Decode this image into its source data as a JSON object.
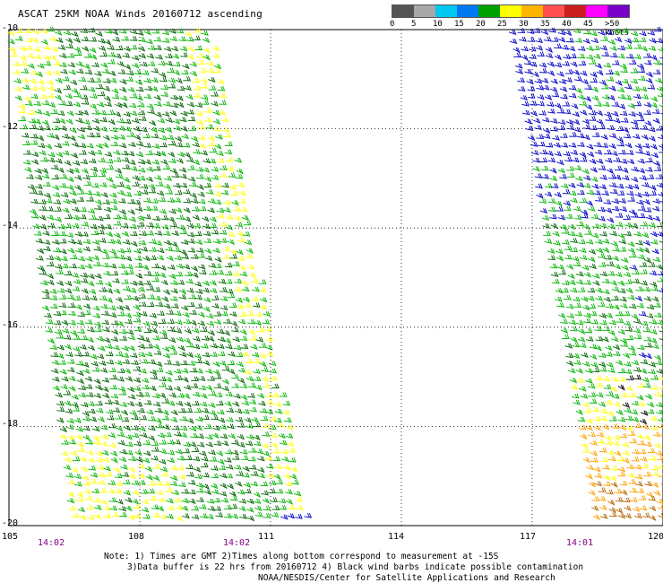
{
  "title": "ASCAT 25KM NOAA Winds 20160712 ascending",
  "legend": {
    "labels": [
      "0",
      "5",
      "10",
      "15",
      "20",
      "25",
      "30",
      "35",
      "40",
      "45",
      ">50 knots"
    ],
    "colors": [
      "#555555",
      "#a8a8a8",
      "#00c8f0",
      "#0078f0",
      "#00a000",
      "#ffff00",
      "#ffb400",
      "#ff5050",
      "#c81e1e",
      "#ff00ff",
      "#7800c8"
    ]
  },
  "map": {
    "lon_ticks": [
      "105",
      "108",
      "111",
      "114",
      "117",
      "120"
    ],
    "lat_ticks": [
      "-10",
      "-12",
      "-14",
      "-16",
      "-18",
      "-20"
    ],
    "lon_range": [
      105,
      120
    ],
    "lat_range": [
      -20,
      -10
    ],
    "grid": "dotted",
    "swath_times": [
      "14:02",
      "14:02",
      "14:01"
    ],
    "barb_colors": {
      "dark_green": "#006400",
      "green": "#00b400",
      "yellow": "#ffff00",
      "blue": "#0000c8",
      "orange": "#ffa000",
      "brown": "#b46400",
      "black": "#000000"
    }
  },
  "notes": {
    "line1": "Note: 1) Times are GMT 2)Times along bottom correspond to measurement at -15S",
    "line2": "3)Data buffer is 22 hrs from 20160712 4) Black wind barbs indicate possible contamination",
    "line3": "NOAA/NESDIS/Center for Satellite Applications and Research"
  }
}
